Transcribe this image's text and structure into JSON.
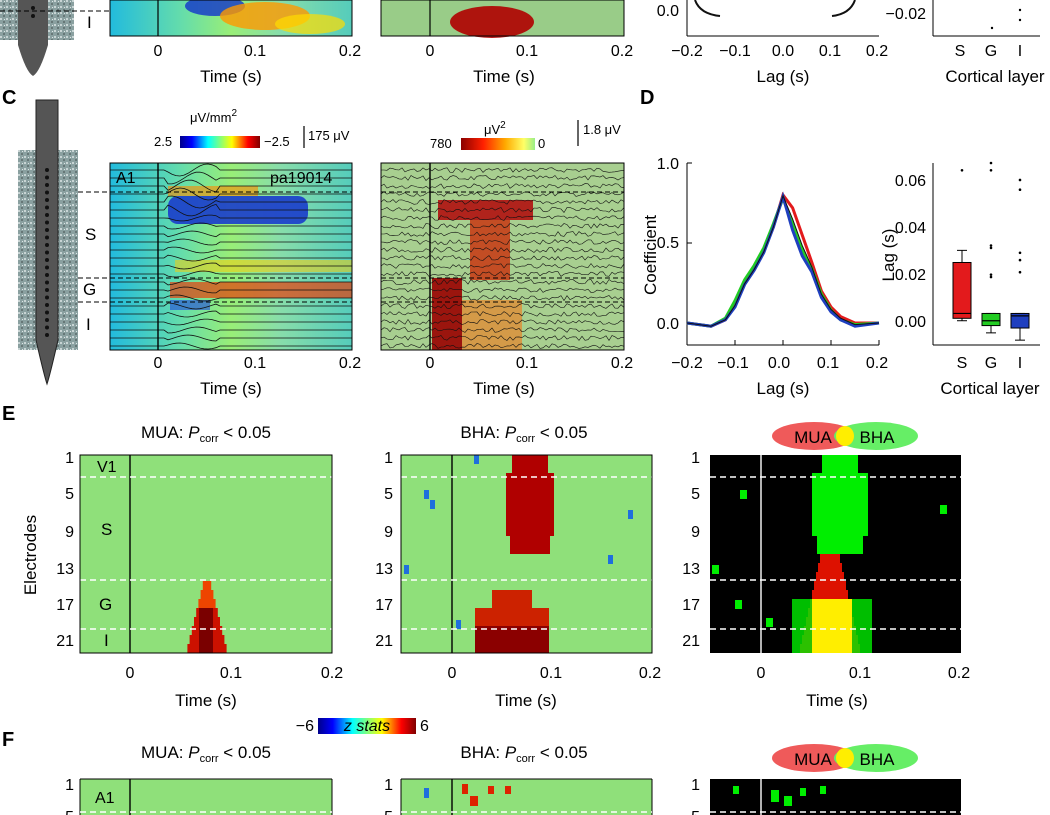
{
  "panels": {
    "C": "C",
    "D": "D",
    "E": "E",
    "F": "F"
  },
  "time_axis": {
    "xlabel": "Time (s)",
    "ticks": [
      "0",
      "0.1",
      "0.2"
    ]
  },
  "lag_axis": {
    "xlabel": "Lag (s)",
    "ticks": [
      "−0.2",
      "−0.1",
      "0.0",
      "0.1",
      "0.2"
    ]
  },
  "layers": {
    "S": "S",
    "G": "G",
    "I": "I"
  },
  "top_partial": {
    "lag_y0": "0.0",
    "box_y": "−0.02",
    "box_xlabel": "Cortical layer"
  },
  "panel_c": {
    "csd_unit": "μV/mm",
    "csd_unit_sup": "2",
    "csd_min": "2.5",
    "csd_max": "−2.5",
    "csd_scale": "175 μV",
    "bha_unit": "μV",
    "bha_unit_sup": "2",
    "bha_min": "780",
    "bha_max": "0",
    "bha_scale": "1.8 μV",
    "area": "A1",
    "site": "pa19014"
  },
  "chart_data": [
    {
      "type": "line",
      "panel": "D-left",
      "xlabel": "Lag (s)",
      "ylabel": "Coefficient",
      "xlim": [
        -0.2,
        0.2
      ],
      "ylim": [
        -0.05,
        1.0
      ],
      "yticks": [
        "0.0",
        "0.5",
        "1.0"
      ],
      "x": [
        -0.2,
        -0.15,
        -0.12,
        -0.1,
        -0.08,
        -0.06,
        -0.04,
        -0.02,
        0.0,
        0.02,
        0.04,
        0.06,
        0.08,
        0.1,
        0.12,
        0.15,
        0.2
      ],
      "series": [
        {
          "name": "S",
          "color": "#e31a1c",
          "values": [
            0.0,
            -0.02,
            0.02,
            0.12,
            0.25,
            0.34,
            0.45,
            0.6,
            0.8,
            0.72,
            0.55,
            0.38,
            0.2,
            0.1,
            0.04,
            0.0,
            0.0
          ]
        },
        {
          "name": "G",
          "color": "#22cc22",
          "values": [
            0.0,
            -0.02,
            0.03,
            0.14,
            0.27,
            0.36,
            0.47,
            0.62,
            0.78,
            0.62,
            0.46,
            0.34,
            0.18,
            0.08,
            0.02,
            -0.01,
            0.0
          ]
        },
        {
          "name": "I",
          "color": "#1f3fbf",
          "values": [
            0.0,
            -0.02,
            0.02,
            0.1,
            0.24,
            0.33,
            0.44,
            0.6,
            0.79,
            0.58,
            0.42,
            0.32,
            0.16,
            0.07,
            0.02,
            -0.02,
            0.0
          ]
        }
      ]
    },
    {
      "type": "box",
      "panel": "D-right",
      "xlabel": "Cortical layer",
      "ylabel": "Lag (s)",
      "ylim": [
        -0.01,
        0.065
      ],
      "yticks": [
        "0.00",
        "0.02",
        "0.04",
        "0.06"
      ],
      "categories": [
        "S",
        "G",
        "I"
      ],
      "colors": [
        "#e31a1c",
        "#22cc22",
        "#1f3fbf"
      ],
      "boxes": [
        {
          "q1": 0.001,
          "median": 0.003,
          "q3": 0.024,
          "whisker_low": 0.0,
          "whisker_high": 0.029,
          "outliers": [
            0.062
          ]
        },
        {
          "q1": -0.002,
          "median": 0.0,
          "q3": 0.003,
          "whisker_low": -0.005,
          "whisker_high": 0.003,
          "outliers": [
            0.065,
            0.062,
            0.031,
            0.03,
            0.019,
            0.018
          ]
        },
        {
          "q1": -0.003,
          "median": 0.002,
          "q3": 0.003,
          "whisker_low": -0.008,
          "whisker_high": 0.003,
          "outliers": [
            0.058,
            0.054,
            0.028,
            0.025,
            0.02
          ]
        }
      ]
    },
    {
      "type": "heatmap",
      "panel": "E-MUA",
      "title_prefix": "MUA: ",
      "title_p": "P",
      "title_sub": "corr",
      "title_suffix": " < 0.05",
      "ylabel": "Electrodes",
      "yticks": [
        "1",
        "5",
        "9",
        "13",
        "17",
        "21"
      ],
      "xticks": [
        "0",
        "0.1",
        "0.2"
      ],
      "xlabel": "Time (s)",
      "area": "V1",
      "blob_time": [
        0.045,
        0.095
      ],
      "blob_electrodes": [
        15,
        22
      ]
    },
    {
      "type": "heatmap",
      "panel": "E-BHA",
      "title_prefix": "BHA: ",
      "title_p": "P",
      "title_sub": "corr",
      "title_suffix": " < 0.05",
      "yticks": [
        "1",
        "5",
        "9",
        "13",
        "17",
        "21"
      ],
      "xticks": [
        "0",
        "0.1",
        "0.2"
      ],
      "xlabel": "Time (s)",
      "blob_time": [
        0.05,
        0.1
      ],
      "blob_electrodes": [
        1,
        11
      ]
    },
    {
      "type": "heatmap",
      "panel": "E-overlap",
      "legend_a": "MUA",
      "legend_b": "BHA",
      "yticks": [
        "1",
        "5",
        "9",
        "13",
        "17",
        "21"
      ],
      "xticks": [
        "0",
        "0.1",
        "0.2"
      ],
      "xlabel": "Time (s)"
    }
  ],
  "colorbar_z": {
    "min": "−6",
    "label": "z stats",
    "max": "6"
  },
  "panel_f": {
    "mua_title_prefix": "MUA: ",
    "bha_title_prefix": "BHA: ",
    "p": "P",
    "sub": "corr",
    "suffix": " < 0.05",
    "area": "A1",
    "yticks": [
      "1",
      "5"
    ],
    "legend_a": "MUA",
    "legend_b": "BHA"
  },
  "colors": {
    "green_bg": "#8fe07a",
    "red": "#e31a1c",
    "dark_red": "#8b0000",
    "blue": "#1f3fbf",
    "bright_green": "#00ee00",
    "yellow": "#ffee00"
  }
}
